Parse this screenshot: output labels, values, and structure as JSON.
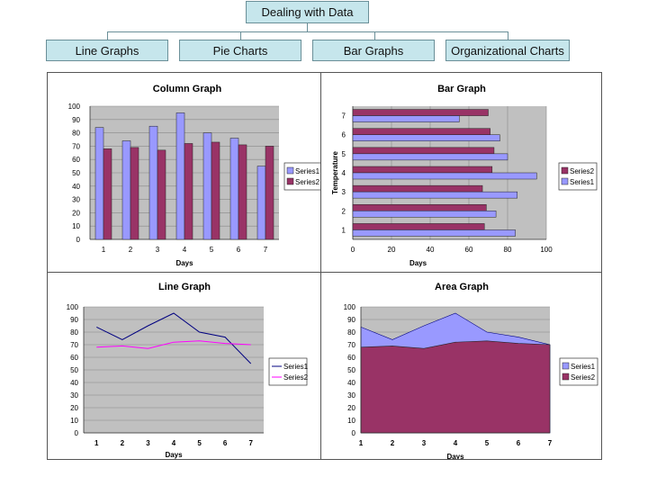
{
  "org_chart": {
    "root": "Dealing with Data",
    "children": [
      "Line Graphs",
      "Pie Charts",
      "Bar Graphs",
      "Organizational Charts"
    ]
  },
  "colors": {
    "series1": "#9999ff",
    "series2": "#993366",
    "plot_bg": "#c0c0c0",
    "box_bg": "#c6e6ec"
  },
  "chart_data": [
    {
      "type": "bar",
      "orientation": "vertical",
      "title": "Column Graph",
      "xlabel": "Days",
      "ylabel": "",
      "categories": [
        "1",
        "2",
        "3",
        "4",
        "5",
        "6",
        "7"
      ],
      "series": [
        {
          "name": "Series1",
          "values": [
            84,
            74,
            85,
            95,
            80,
            76,
            55
          ]
        },
        {
          "name": "Series2",
          "values": [
            68,
            69,
            67,
            72,
            73,
            71,
            70
          ]
        }
      ],
      "ylim": [
        0,
        100
      ],
      "yticks": [
        "0",
        "10",
        "20",
        "30",
        "40",
        "50",
        "60",
        "70",
        "80",
        "90",
        "100"
      ],
      "legend": [
        "Series1",
        "Series2"
      ]
    },
    {
      "type": "bar",
      "orientation": "horizontal",
      "title": "Bar Graph",
      "xlabel": "Days",
      "ylabel": "Temperature",
      "categories": [
        "1",
        "2",
        "3",
        "4",
        "5",
        "6",
        "7"
      ],
      "series": [
        {
          "name": "Series1",
          "values": [
            84,
            74,
            85,
            95,
            80,
            76,
            55
          ]
        },
        {
          "name": "Series2",
          "values": [
            68,
            69,
            67,
            72,
            73,
            71,
            70
          ]
        }
      ],
      "xlim": [
        0,
        100
      ],
      "xticks": [
        "0",
        "20",
        "40",
        "60",
        "80",
        "100"
      ],
      "legend": [
        "Series2",
        "Series1"
      ]
    },
    {
      "type": "line",
      "title": "Line Graph",
      "xlabel": "Days",
      "ylabel": "",
      "categories": [
        "1",
        "2",
        "3",
        "4",
        "5",
        "6",
        "7"
      ],
      "series": [
        {
          "name": "Series1",
          "values": [
            84,
            74,
            85,
            95,
            80,
            76,
            55
          ]
        },
        {
          "name": "Series2",
          "values": [
            68,
            69,
            67,
            72,
            73,
            71,
            70
          ]
        }
      ],
      "ylim": [
        0,
        100
      ],
      "yticks": [
        "0",
        "10",
        "20",
        "30",
        "40",
        "50",
        "60",
        "70",
        "80",
        "90",
        "100"
      ],
      "legend": [
        "Series1",
        "Series2"
      ],
      "line_colors": [
        "#000080",
        "#ff00ff"
      ]
    },
    {
      "type": "area",
      "title": "Area Graph",
      "xlabel": "Days",
      "ylabel": "",
      "categories": [
        "1",
        "2",
        "3",
        "4",
        "5",
        "6",
        "7"
      ],
      "series": [
        {
          "name": "Series1",
          "values": [
            84,
            74,
            85,
            95,
            80,
            76,
            55
          ]
        },
        {
          "name": "Series2",
          "values": [
            68,
            69,
            67,
            72,
            73,
            71,
            70
          ]
        }
      ],
      "ylim": [
        0,
        100
      ],
      "yticks": [
        "0",
        "10",
        "20",
        "30",
        "40",
        "50",
        "60",
        "70",
        "80",
        "90",
        "100"
      ],
      "legend": [
        "Series1",
        "Series2"
      ]
    }
  ]
}
